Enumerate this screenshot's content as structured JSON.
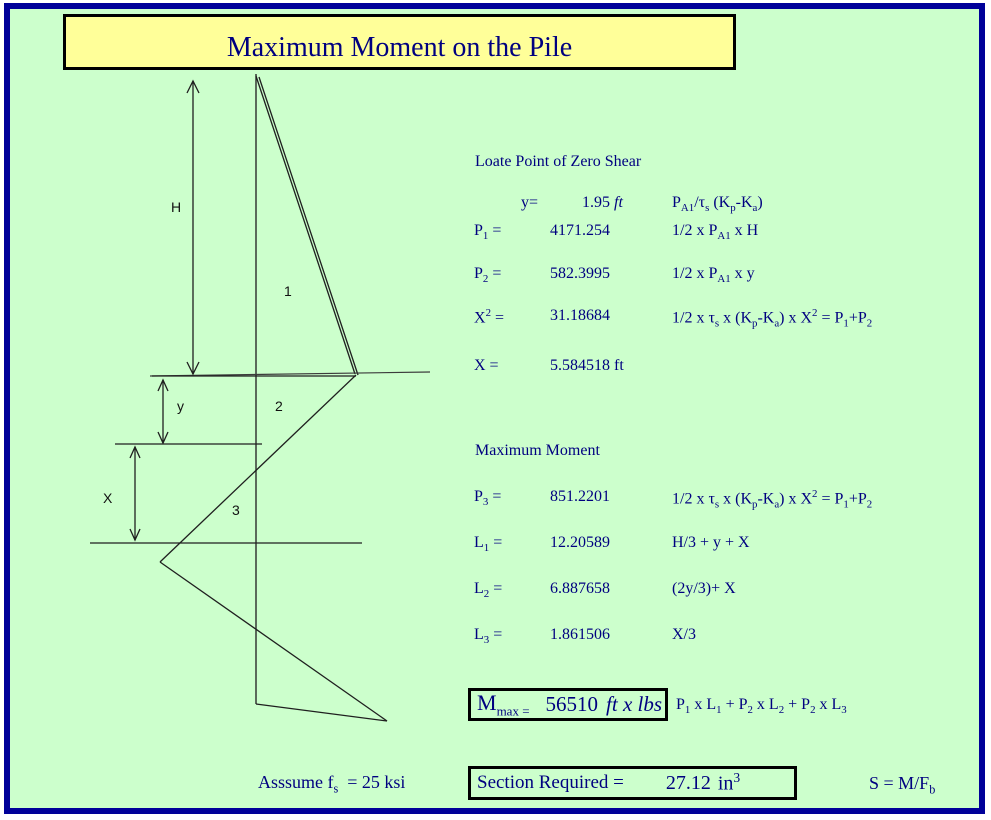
{
  "window": {
    "title": "Maximum Moment on the Pile"
  },
  "colors": {
    "background": "#ccffcc",
    "banner_fill": "#ffff99",
    "frame_border": "#000099",
    "text": "#000080",
    "diagram_lines": "#1f1f1f"
  },
  "diagram": {
    "labels": {
      "h": "H",
      "region1": "1",
      "y": "y",
      "region2": "2",
      "x": "X",
      "region3": "3"
    }
  },
  "zero_shear": {
    "heading": "Loate Point of Zero Shear",
    "rows": [
      {
        "label": "y=",
        "value": "1.95",
        "unit": "ft",
        "formula": "P<sub>A1</sub>/&tau;<sub>s</sub> (K<sub>p</sub>-K<sub>a</sub>)"
      },
      {
        "label": "P<sub>1</sub> =",
        "value": "4171.254",
        "unit": "",
        "formula": "1/2 x P<sub>A1</sub> x H"
      },
      {
        "label": "P<sub>2</sub> =",
        "value": "582.3995",
        "unit": "",
        "formula": "1/2 x P<sub>A1</sub> x y"
      },
      {
        "label": "X<sup>2</sup> =",
        "value": "31.18684",
        "unit": "",
        "formula": "1/2 x &tau;<sub>s</sub> x (K<sub>p</sub>-K<sub>a</sub>) x X<sup>2</sup> = P<sub>1</sub>+P<sub>2</sub>"
      },
      {
        "label": "X =",
        "value": "5.584518",
        "unit": "ft",
        "formula": ""
      }
    ]
  },
  "max_moment": {
    "heading": "Maximum Moment",
    "rows": [
      {
        "label": "P<sub>3</sub> =",
        "value": "851.2201",
        "unit": "",
        "formula": "1/2 x &tau;<sub>s</sub> x (K<sub>p</sub>-K<sub>a</sub>) x X<sup>2</sup> = P<sub>1</sub>+P<sub>2</sub>"
      },
      {
        "label": "L<sub>1</sub> =",
        "value": "12.20589",
        "unit": "",
        "formula": "H/3 + y + X"
      },
      {
        "label": "L<sub>2</sub> =",
        "value": "6.887658",
        "unit": "",
        "formula": "(2y/3)+ X"
      },
      {
        "label": "L<sub>3</sub> =",
        "value": "1.861506",
        "unit": "",
        "formula": "X/3"
      }
    ],
    "result": {
      "label": "M<sub>max =</sub>",
      "value": "56510",
      "units": "ft x lbs",
      "formula": "P<sub>1</sub> x L<sub>1</sub> + P<sub>2</sub> x L<sub>2</sub> + P<sub>2</sub> x L<sub>3</sub>"
    }
  },
  "footer": {
    "assumption": "Asssume f<sub>s</sub> &nbsp;= 25 ksi",
    "section_label": "Section Required =",
    "section_value": "27.12",
    "section_unit": "in<sup>3</sup>",
    "stress_formula": "S = M/F<sub>b</sub>"
  }
}
